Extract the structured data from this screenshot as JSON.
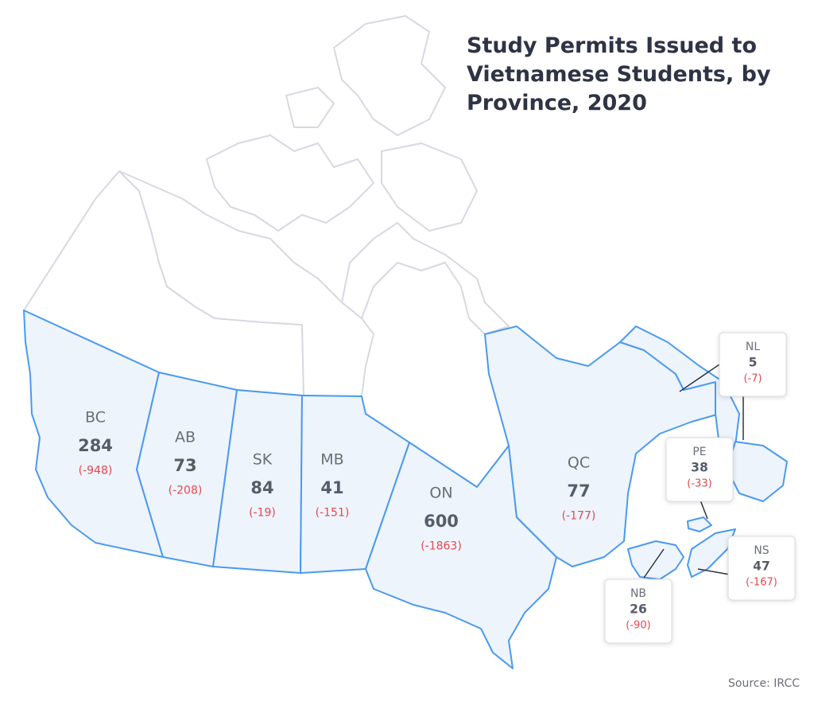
{
  "title": "Study Permits Issued to Vietnamese Students, by Province, 2020",
  "provinces": [
    {
      "code": "BC",
      "value": 284,
      "change": "(-948)"
    },
    {
      "code": "AB",
      "value": 73,
      "change": "(-208)"
    },
    {
      "code": "SK",
      "value": 84,
      "change": "(-19)"
    },
    {
      "code": "MB",
      "value": 41,
      "change": "(-151)"
    },
    {
      "code": "ON",
      "value": 600,
      "change": "(-1863)"
    },
    {
      "code": "QC",
      "value": 77,
      "change": "(-177)"
    },
    {
      "code": "NL",
      "value": 5,
      "change": "(-7)"
    },
    {
      "code": "PE",
      "value": 38,
      "change": "(-33)"
    },
    {
      "code": "NS",
      "value": 47,
      "change": "(-167)"
    },
    {
      "code": "NB",
      "value": 26,
      "change": "(-90)"
    }
  ],
  "source": "Source: IRCC"
}
